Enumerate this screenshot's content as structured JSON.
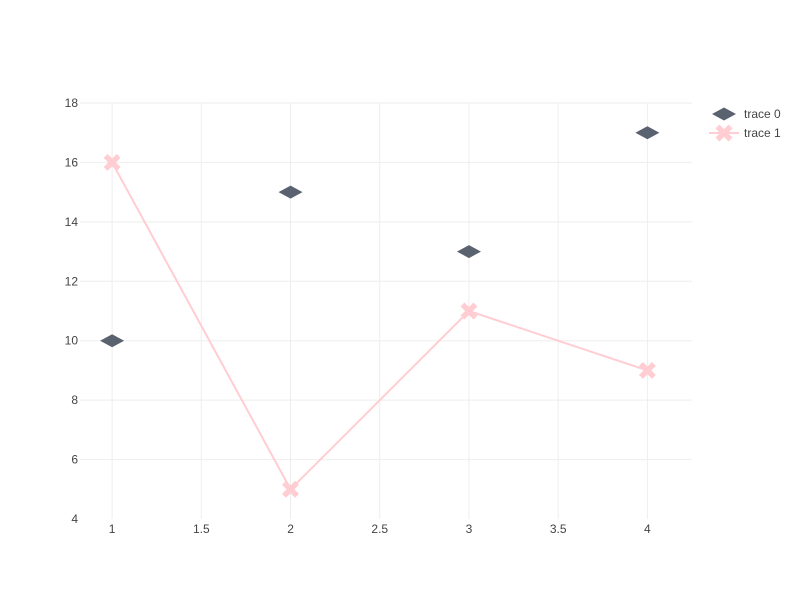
{
  "chart_data": {
    "type": "scatter",
    "title": "",
    "xlabel": "",
    "ylabel": "",
    "xlim": [
      0.82,
      4.25
    ],
    "ylim": [
      4,
      18
    ],
    "x_ticks": [
      1,
      1.5,
      2,
      2.5,
      3,
      3.5,
      4
    ],
    "y_ticks": [
      4,
      6,
      8,
      10,
      12,
      14,
      16,
      18
    ],
    "grid": true,
    "legend_position": "top-right",
    "series": [
      {
        "name": "trace 0",
        "mode": "markers",
        "marker": "diamond",
        "color": "#5a6270",
        "x": [
          1,
          2,
          3,
          4
        ],
        "y": [
          10,
          15,
          13,
          17
        ]
      },
      {
        "name": "trace 1",
        "mode": "lines+markers",
        "marker": "x",
        "color": "#ffcdd2",
        "x": [
          1,
          2,
          3,
          4
        ],
        "y": [
          16,
          5,
          11,
          9
        ]
      }
    ]
  }
}
